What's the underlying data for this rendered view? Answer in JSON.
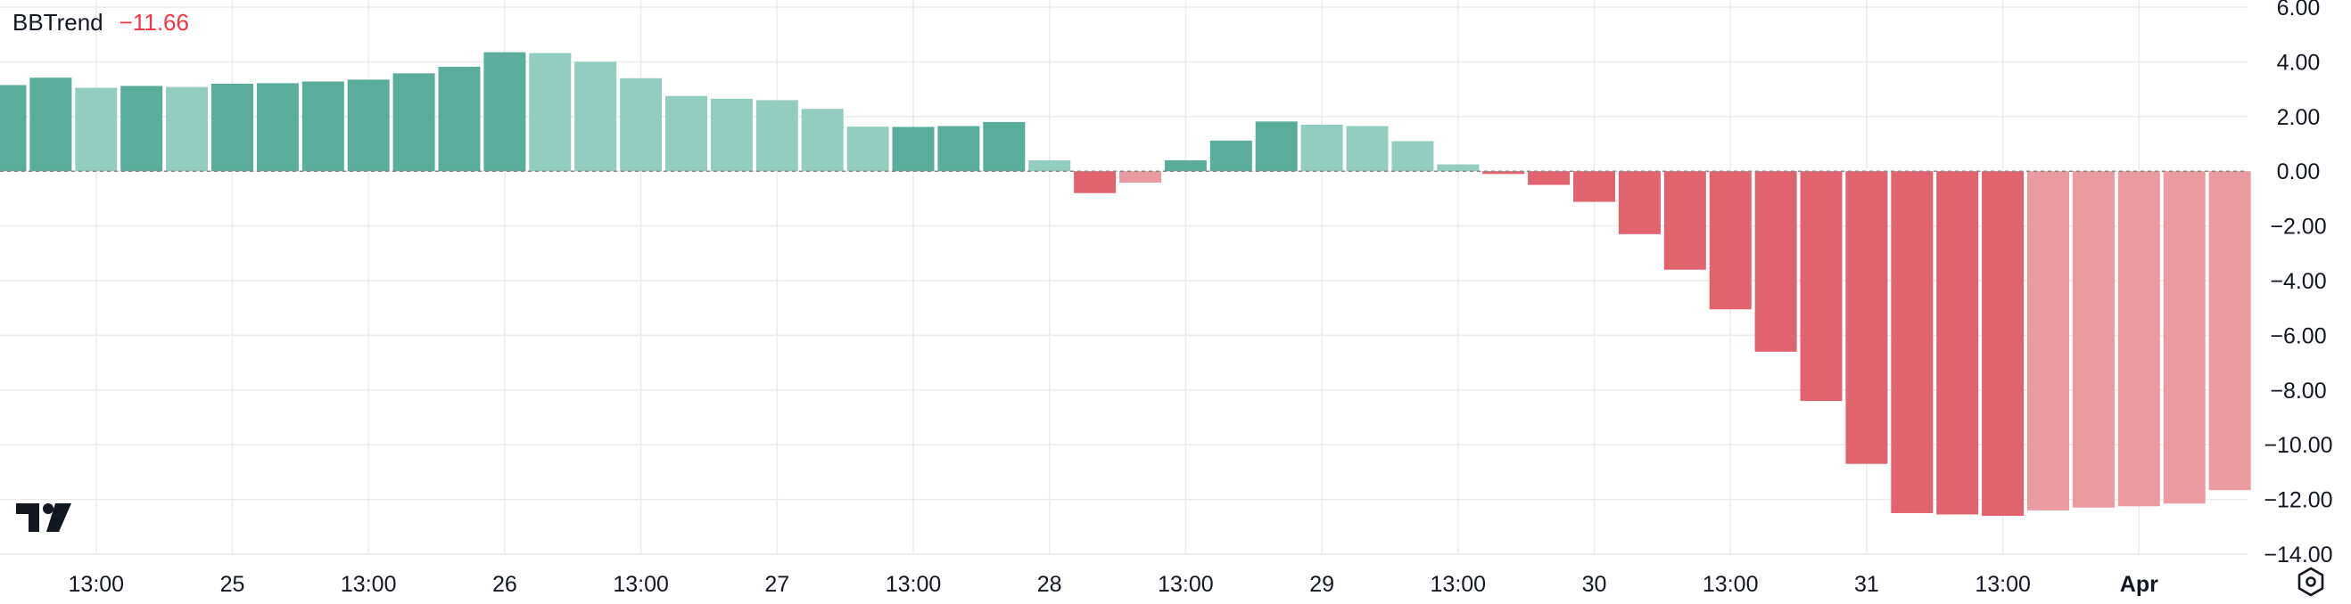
{
  "indicator": {
    "name": "BBTrend",
    "value": "−11.66"
  },
  "colors": {
    "strong_up": "#5aad9b",
    "weak_up": "#93cdbf",
    "strong_down": "#e0636d",
    "weak_down": "#ea9ba1",
    "grid": "#ececec",
    "text": "#131722",
    "zero_line": "#8a8a8a"
  },
  "icons": {
    "logo": "tradingview-logo-icon",
    "settings": "settings-hexagon-icon"
  },
  "chart_data": {
    "type": "bar",
    "title": "BBTrend",
    "ylim": [
      -14,
      6
    ],
    "y_ticks": [
      "6.00",
      "4.00",
      "2.00",
      "0.00",
      "−2.00",
      "−4.00",
      "−6.00",
      "−8.00",
      "−10.00",
      "−12.00",
      "−14.00"
    ],
    "y_tick_values": [
      6,
      4,
      2,
      0,
      -2,
      -4,
      -6,
      -8,
      -10,
      -12,
      -14
    ],
    "x_ticks": [
      {
        "label": "13:00",
        "bar": 2
      },
      {
        "label": "25",
        "bar": 5
      },
      {
        "label": "13:00",
        "bar": 8
      },
      {
        "label": "26",
        "bar": 11
      },
      {
        "label": "13:00",
        "bar": 14
      },
      {
        "label": "27",
        "bar": 17
      },
      {
        "label": "13:00",
        "bar": 20
      },
      {
        "label": "28",
        "bar": 23
      },
      {
        "label": "13:00",
        "bar": 26
      },
      {
        "label": "29",
        "bar": 29
      },
      {
        "label": "13:00",
        "bar": 32
      },
      {
        "label": "30",
        "bar": 35
      },
      {
        "label": "13:00",
        "bar": 38
      },
      {
        "label": "31",
        "bar": 41
      },
      {
        "label": "13:00",
        "bar": 44
      },
      {
        "label": "Apr",
        "bar": 47,
        "bold": true
      }
    ],
    "values": [
      3.15,
      3.42,
      3.05,
      3.12,
      3.08,
      3.2,
      3.22,
      3.28,
      3.35,
      3.58,
      3.82,
      4.35,
      4.32,
      4.0,
      3.4,
      2.75,
      2.65,
      2.6,
      2.28,
      1.63,
      1.62,
      1.65,
      1.8,
      0.4,
      -0.8,
      -0.42,
      0.4,
      1.12,
      1.82,
      1.7,
      1.65,
      1.1,
      0.25,
      -0.1,
      -0.5,
      -1.12,
      -2.3,
      -3.6,
      -5.05,
      -6.6,
      -8.4,
      -10.7,
      -12.5,
      -12.55,
      -12.6,
      -12.4,
      -12.3,
      -12.25,
      -12.15,
      -11.66
    ],
    "strength": [
      "strong",
      "strong",
      "weak",
      "strong",
      "weak",
      "strong",
      "strong",
      "strong",
      "strong",
      "strong",
      "strong",
      "strong",
      "weak",
      "weak",
      "weak",
      "weak",
      "weak",
      "weak",
      "weak",
      "weak",
      "strong",
      "strong",
      "strong",
      "weak",
      "strong",
      "weak",
      "strong",
      "strong",
      "strong",
      "weak",
      "weak",
      "weak",
      "weak",
      "strong",
      "strong",
      "strong",
      "strong",
      "strong",
      "strong",
      "strong",
      "strong",
      "strong",
      "strong",
      "strong",
      "strong",
      "weak",
      "weak",
      "weak",
      "weak",
      "weak"
    ]
  }
}
